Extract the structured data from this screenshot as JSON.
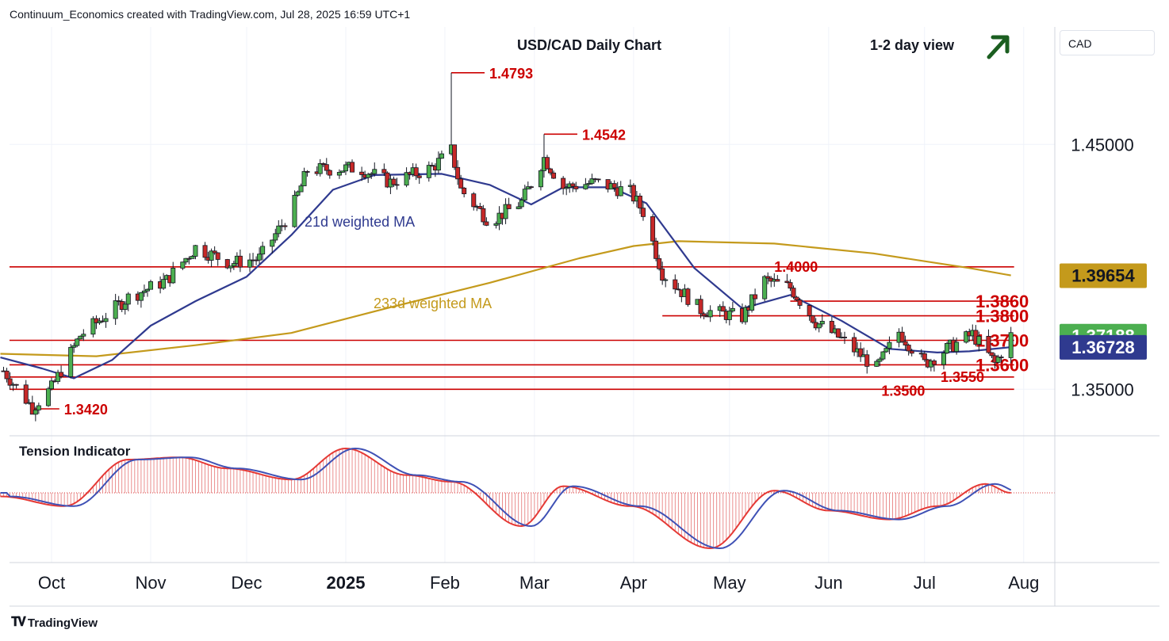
{
  "header": {
    "attribution": "Continuum_Economics created with TradingView.com, Jul 28, 2025 16:59 UTC+1",
    "currency": "CAD",
    "brand": "TradingView"
  },
  "chart_data": {
    "type": "candlestick",
    "title": "USD/CAD Daily Chart",
    "view_label": "1-2 day view",
    "view_direction": "up",
    "y_axis": {
      "range": [
        1.331,
        1.498
      ],
      "ticks": [
        {
          "value": 1.45,
          "label": "1.45000"
        },
        {
          "value": 1.35,
          "label": "1.35000"
        }
      ],
      "price_tags": [
        {
          "value": 1.39654,
          "label": "1.39654",
          "color": "#c49a1c",
          "text_color": "#131722"
        },
        {
          "value": 1.37188,
          "label": "1.37188",
          "color": "#4caf50",
          "text_color": "#ffffff"
        },
        {
          "value": 1.36728,
          "label": "1.36728",
          "color": "#2f3a8f",
          "text_color": "#ffffff"
        }
      ]
    },
    "x_axis": {
      "ticks": [
        {
          "date": "2024-10-01",
          "label": "Oct",
          "bold": false
        },
        {
          "date": "2024-11-01",
          "label": "Nov",
          "bold": false
        },
        {
          "date": "2024-12-01",
          "label": "Dec",
          "bold": false
        },
        {
          "date": "2025-01-01",
          "label": "2025",
          "bold": true
        },
        {
          "date": "2025-02-01",
          "label": "Feb",
          "bold": false
        },
        {
          "date": "2025-03-01",
          "label": "Mar",
          "bold": false
        },
        {
          "date": "2025-04-01",
          "label": "Apr",
          "bold": false
        },
        {
          "date": "2025-05-01",
          "label": "May",
          "bold": false
        },
        {
          "date": "2025-06-01",
          "label": "Jun",
          "bold": false
        },
        {
          "date": "2025-07-01",
          "label": "Jul",
          "bold": false
        },
        {
          "date": "2025-08-01",
          "label": "Aug",
          "bold": false
        }
      ]
    },
    "levels": [
      {
        "value": 1.4793,
        "label": "1.4793",
        "style": "peak",
        "date": "2025-02-03"
      },
      {
        "value": 1.4542,
        "label": "1.4542",
        "style": "peak",
        "date": "2025-03-04"
      },
      {
        "value": 1.4,
        "label": "1.4000",
        "style": "line",
        "from": "start"
      },
      {
        "value": 1.386,
        "label": "1.3860",
        "style": "line",
        "from": "2025-05-20",
        "big": true
      },
      {
        "value": 1.38,
        "label": "1.3800",
        "style": "line",
        "from": "2025-04-10",
        "big": true
      },
      {
        "value": 1.37,
        "label": "1.3700",
        "style": "line",
        "from": "start",
        "big": true
      },
      {
        "value": 1.36,
        "label": "1.3600",
        "style": "line",
        "from": "start",
        "big": true
      },
      {
        "value": 1.355,
        "label": "1.3550",
        "style": "line",
        "from": "start"
      },
      {
        "value": 1.35,
        "label": "1.3500",
        "style": "line",
        "from": "start"
      },
      {
        "value": 1.342,
        "label": "1.3420",
        "style": "trough",
        "date": "2024-09-25"
      }
    ],
    "ma_labels": [
      {
        "name": "21d weighted MA",
        "color": "#2f3a8f"
      },
      {
        "name": "233d weighted MA",
        "color": "#c49a1c"
      }
    ],
    "ma233": [
      [
        "2024-09-15",
        1.3645
      ],
      [
        "2024-10-15",
        1.3635
      ],
      [
        "2024-11-15",
        1.368
      ],
      [
        "2024-12-15",
        1.373
      ],
      [
        "2025-01-15",
        1.3835
      ],
      [
        "2025-02-15",
        1.3935
      ],
      [
        "2025-03-15",
        1.4035
      ],
      [
        "2025-04-01",
        1.4085
      ],
      [
        "2025-04-15",
        1.4105
      ],
      [
        "2025-05-15",
        1.4095
      ],
      [
        "2025-06-15",
        1.4055
      ],
      [
        "2025-07-15",
        1.3995
      ],
      [
        "2025-07-28",
        1.3965
      ]
    ],
    "ma21": [
      [
        "2024-09-15",
        1.363
      ],
      [
        "2024-09-28",
        1.3585
      ],
      [
        "2024-10-08",
        1.3545
      ],
      [
        "2024-10-20",
        1.362
      ],
      [
        "2024-11-01",
        1.376
      ],
      [
        "2024-11-15",
        1.386
      ],
      [
        "2024-12-01",
        1.396
      ],
      [
        "2024-12-15",
        1.413
      ],
      [
        "2024-12-28",
        1.4315
      ],
      [
        "2025-01-10",
        1.4375
      ],
      [
        "2025-01-31",
        1.438
      ],
      [
        "2025-02-15",
        1.4335
      ],
      [
        "2025-02-28",
        1.4255
      ],
      [
        "2025-03-10",
        1.4325
      ],
      [
        "2025-03-25",
        1.4325
      ],
      [
        "2025-04-05",
        1.426
      ],
      [
        "2025-04-20",
        1.3995
      ],
      [
        "2025-05-05",
        1.383
      ],
      [
        "2025-05-20",
        1.3885
      ],
      [
        "2025-06-05",
        1.378
      ],
      [
        "2025-06-20",
        1.3665
      ],
      [
        "2025-07-05",
        1.365
      ],
      [
        "2025-07-15",
        1.3655
      ],
      [
        "2025-07-28",
        1.3672
      ]
    ],
    "ohlc_anchors": [
      [
        "2024-09-16",
        1.3575
      ],
      [
        "2024-09-25",
        1.3425
      ],
      [
        "2024-10-01",
        1.3505
      ],
      [
        "2024-10-10",
        1.372
      ],
      [
        "2024-10-25",
        1.3875
      ],
      [
        "2024-11-06",
        1.3945
      ],
      [
        "2024-11-15",
        1.408
      ],
      [
        "2024-11-26",
        1.4015
      ],
      [
        "2024-12-05",
        1.4035
      ],
      [
        "2024-12-15",
        1.423
      ],
      [
        "2024-12-20",
        1.4395
      ],
      [
        "2025-01-05",
        1.4405
      ],
      [
        "2025-01-15",
        1.4345
      ],
      [
        "2025-01-28",
        1.4405
      ],
      [
        "2025-02-03",
        1.4475
      ],
      [
        "2025-02-06",
        1.4315
      ],
      [
        "2025-02-15",
        1.4185
      ],
      [
        "2025-02-25",
        1.4265
      ],
      [
        "2025-03-04",
        1.4445
      ],
      [
        "2025-03-10",
        1.4325
      ],
      [
        "2025-03-20",
        1.4345
      ],
      [
        "2025-03-31",
        1.4305
      ],
      [
        "2025-04-04",
        1.4225
      ],
      [
        "2025-04-10",
        1.3975
      ],
      [
        "2025-04-22",
        1.3825
      ],
      [
        "2025-05-05",
        1.3795
      ],
      [
        "2025-05-12",
        1.3945
      ],
      [
        "2025-05-20",
        1.3915
      ],
      [
        "2025-05-28",
        1.3775
      ],
      [
        "2025-06-05",
        1.3705
      ],
      [
        "2025-06-16",
        1.3585
      ],
      [
        "2025-06-23",
        1.3735
      ],
      [
        "2025-07-01",
        1.3605
      ],
      [
        "2025-07-08",
        1.3665
      ],
      [
        "2025-07-16",
        1.3725
      ],
      [
        "2025-07-23",
        1.3605
      ],
      [
        "2025-07-28",
        1.3719
      ]
    ],
    "tension_indicator": {
      "title": "Tension Indicator",
      "series": [
        [
          "2024-09-15",
          -0.08
        ],
        [
          "2024-10-05",
          -0.3
        ],
        [
          "2024-10-25",
          0.75
        ],
        [
          "2024-11-10",
          0.8
        ],
        [
          "2024-11-25",
          0.55
        ],
        [
          "2024-12-15",
          0.3
        ],
        [
          "2025-01-01",
          1.0
        ],
        [
          "2025-01-20",
          0.4
        ],
        [
          "2025-02-03",
          0.25
        ],
        [
          "2025-02-25",
          -0.75
        ],
        [
          "2025-03-10",
          0.15
        ],
        [
          "2025-03-31",
          -0.3
        ],
        [
          "2025-04-25",
          -1.25
        ],
        [
          "2025-05-15",
          0.05
        ],
        [
          "2025-06-01",
          -0.4
        ],
        [
          "2025-06-20",
          -0.6
        ],
        [
          "2025-07-05",
          -0.3
        ],
        [
          "2025-07-20",
          0.2
        ],
        [
          "2025-07-28",
          0.0
        ]
      ]
    }
  }
}
